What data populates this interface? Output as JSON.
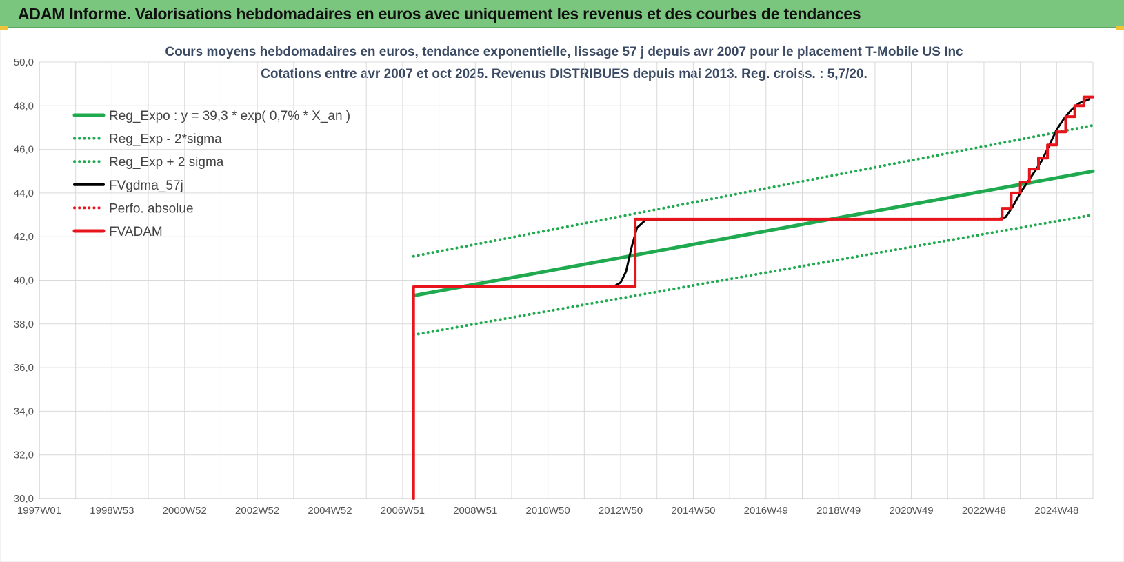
{
  "banner": {
    "title": "ADAM Informe. Valorisations hebdomadaires en euros avec uniquement les revenus et des courbes de tendances"
  },
  "colors": {
    "banner_bg": "#7bc67e",
    "green": "#1faa4f",
    "red": "#e8141b",
    "black": "#000000",
    "grid": "#d9d9d9"
  },
  "chart_data": {
    "type": "line",
    "title": "Cours moyens hebdomadaires en euros, tendance exponentielle, lissage 57 j depuis avr 2007 pour le placement T-Mobile US Inc",
    "subtitle": "Cotations entre avr 2007 et oct 2025.  Revenus DISTRIBUES depuis mai 2013.  Reg.  croiss. : 5,7/20.",
    "xlabel": "",
    "ylabel": "",
    "ylim": [
      30,
      50
    ],
    "yticks": [
      "30,0",
      "32,0",
      "34,0",
      "36,0",
      "38,0",
      "40,0",
      "42,0",
      "44,0",
      "46,0",
      "48,0",
      "50,0"
    ],
    "xlim": [
      1997.0,
      2026.0
    ],
    "xticks": [
      {
        "label": "1997W01",
        "x": 1997.0
      },
      {
        "label": "1998W53",
        "x": 1999.0
      },
      {
        "label": "2000W52",
        "x": 2001.0
      },
      {
        "label": "2002W52",
        "x": 2003.0
      },
      {
        "label": "2004W52",
        "x": 2005.0
      },
      {
        "label": "2006W51",
        "x": 2007.0
      },
      {
        "label": "2008W51",
        "x": 2009.0
      },
      {
        "label": "2010W50",
        "x": 2011.0
      },
      {
        "label": "2012W50",
        "x": 2013.0
      },
      {
        "label": "2014W50",
        "x": 2015.0
      },
      {
        "label": "2016W49",
        "x": 2017.0
      },
      {
        "label": "2018W49",
        "x": 2019.0
      },
      {
        "label": "2020W49",
        "x": 2021.0
      },
      {
        "label": "2022W48",
        "x": 2023.0
      },
      {
        "label": "2024W48",
        "x": 2025.0
      }
    ],
    "grid": true,
    "legend_position": "top-left",
    "series": [
      {
        "name": "Reg_Expo : y = 39,3 * exp( 0,7% *  X_an )",
        "style": "solid",
        "color": "#1faa4f",
        "points": [
          [
            2007.3,
            39.3
          ],
          [
            2026.0,
            45.0
          ]
        ]
      },
      {
        "name": "Reg_Exp - 2*sigma",
        "style": "dotted",
        "color": "#1faa4f",
        "points": [
          [
            2007.3,
            37.5
          ],
          [
            2026.0,
            43.0
          ]
        ]
      },
      {
        "name": "Reg_Exp + 2 sigma",
        "style": "dotted",
        "color": "#1faa4f",
        "points": [
          [
            2007.3,
            41.1
          ],
          [
            2026.0,
            47.1
          ]
        ]
      },
      {
        "name": "FVgdma_57j",
        "style": "solid",
        "color": "#000000",
        "points": [
          [
            2007.3,
            39.7
          ],
          [
            2012.8,
            39.7
          ],
          [
            2013.0,
            39.9
          ],
          [
            2013.15,
            40.4
          ],
          [
            2013.3,
            41.5
          ],
          [
            2013.45,
            42.4
          ],
          [
            2013.7,
            42.78
          ],
          [
            2023.4,
            42.8
          ],
          [
            2023.6,
            42.9
          ],
          [
            2023.8,
            43.4
          ],
          [
            2024.0,
            44.0
          ],
          [
            2024.2,
            44.5
          ],
          [
            2024.4,
            45.0
          ],
          [
            2024.6,
            45.5
          ],
          [
            2024.8,
            46.2
          ],
          [
            2025.0,
            46.9
          ],
          [
            2025.2,
            47.4
          ],
          [
            2025.4,
            47.8
          ],
          [
            2025.6,
            48.1
          ],
          [
            2025.9,
            48.3
          ]
        ]
      },
      {
        "name": "Perfo. absolue",
        "style": "dotted",
        "color": "#e8141b",
        "points": []
      },
      {
        "name": "FVADAM",
        "style": "solid",
        "color": "#e8141b",
        "points": [
          [
            2007.3,
            30.0
          ],
          [
            2007.3,
            39.7
          ],
          [
            2013.4,
            39.7
          ],
          [
            2013.4,
            42.8
          ],
          [
            2023.5,
            42.8
          ],
          [
            2023.5,
            43.3
          ],
          [
            2023.75,
            43.3
          ],
          [
            2023.75,
            44.0
          ],
          [
            2024.0,
            44.0
          ],
          [
            2024.0,
            44.5
          ],
          [
            2024.25,
            44.5
          ],
          [
            2024.25,
            45.1
          ],
          [
            2024.5,
            45.1
          ],
          [
            2024.5,
            45.6
          ],
          [
            2024.75,
            45.6
          ],
          [
            2024.75,
            46.2
          ],
          [
            2025.0,
            46.2
          ],
          [
            2025.0,
            46.8
          ],
          [
            2025.25,
            46.8
          ],
          [
            2025.25,
            47.5
          ],
          [
            2025.5,
            47.5
          ],
          [
            2025.5,
            48.0
          ],
          [
            2025.75,
            48.0
          ],
          [
            2025.75,
            48.4
          ],
          [
            2026.0,
            48.4
          ]
        ]
      }
    ]
  }
}
